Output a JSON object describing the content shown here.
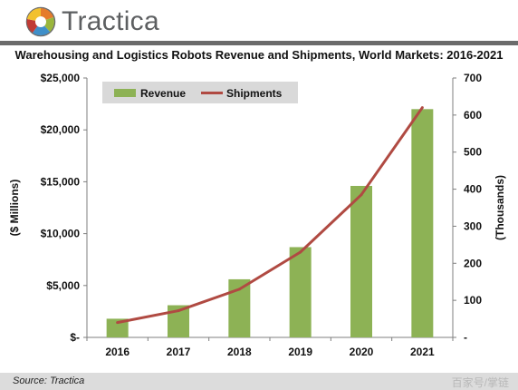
{
  "brand": {
    "name": "Tractica"
  },
  "chart_data": {
    "type": "bar",
    "title": "Warehousing and Logistics Robots Revenue and Shipments, World Markets: 2016-2021",
    "categories": [
      "2016",
      "2017",
      "2018",
      "2019",
      "2020",
      "2021"
    ],
    "series": [
      {
        "name": "Revenue",
        "type": "bar",
        "axis": "left",
        "color": "#8db255",
        "values": [
          1800,
          3100,
          5600,
          8700,
          14600,
          22000
        ]
      },
      {
        "name": "Shipments",
        "type": "line",
        "axis": "right",
        "color": "#b04a42",
        "values": [
          40,
          72,
          130,
          230,
          385,
          620
        ]
      }
    ],
    "ylabel": "($ Millions)",
    "y2label": "(Thousands)",
    "ylim": [
      0,
      25000
    ],
    "y2lim": [
      0,
      700
    ],
    "yticks": [
      "$-",
      "$5,000",
      "$10,000",
      "$15,000",
      "$20,000",
      "$25,000"
    ],
    "y2ticks": [
      "-",
      "100",
      "200",
      "300",
      "400",
      "500",
      "600",
      "700"
    ],
    "legend_position": "top-left",
    "grid": false
  },
  "footer": {
    "source": "Source: Tractica",
    "watermark": "百家号/掌链"
  }
}
